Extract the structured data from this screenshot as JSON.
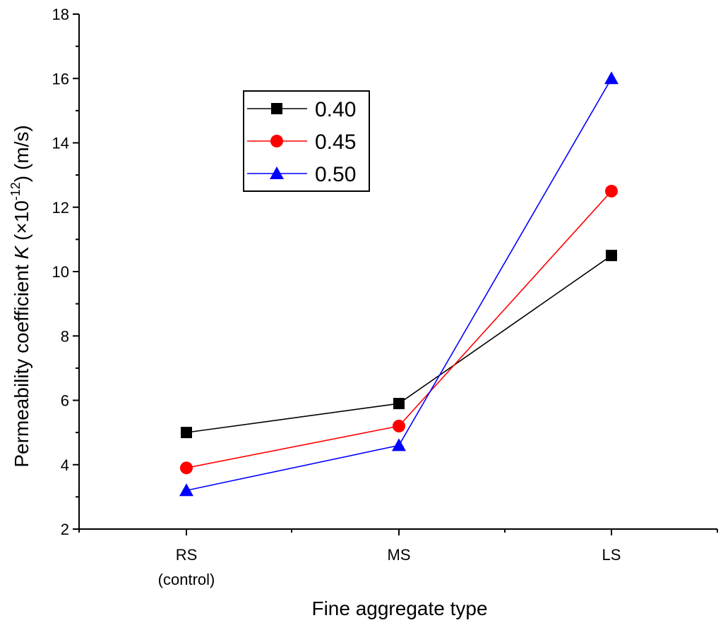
{
  "chart_data": {
    "type": "line",
    "title": "",
    "categories": [
      "RS",
      "MS",
      "LS"
    ],
    "category_sublabels": [
      "(control)",
      "",
      ""
    ],
    "xlabel": "Fine aggregate type",
    "ylabel_parts": {
      "pre": "Permeability coefficient ",
      "var": "K",
      "mid": " (×10",
      "exp": "-12",
      "post": ")  (m/s)"
    },
    "ylim": [
      2,
      18
    ],
    "yticks": [
      2,
      4,
      6,
      8,
      10,
      12,
      14,
      16,
      18
    ],
    "grid": false,
    "legend_position": "top-left",
    "series": [
      {
        "name": "0.40",
        "color": "#000000",
        "marker": "square",
        "values": [
          5.0,
          5.9,
          10.5
        ]
      },
      {
        "name": "0.45",
        "color": "#ff0000",
        "marker": "circle",
        "values": [
          3.9,
          5.2,
          12.5
        ]
      },
      {
        "name": "0.50",
        "color": "#0000ff",
        "marker": "triangle",
        "values": [
          3.2,
          4.6,
          16.0
        ]
      }
    ]
  }
}
